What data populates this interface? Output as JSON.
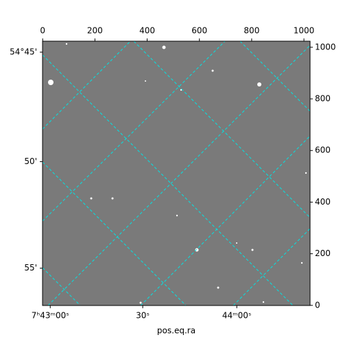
{
  "chart_data": {
    "type": "image",
    "xlabel": "pos.eq.ra",
    "xlim": [
      -0.5,
      1023.5
    ],
    "ylim": [
      -0.5,
      1023.5
    ],
    "xticks": [
      0,
      200,
      400,
      600,
      800,
      1000
    ],
    "yticks": [
      0,
      200,
      400,
      600,
      800,
      1000
    ],
    "ra_ticks": [
      {
        "value": 29,
        "label": "7ʰ43ᵐ00ˢ"
      },
      {
        "value": 383,
        "label": "30ˢ"
      },
      {
        "value": 743,
        "label": "44ᵐ00ˢ"
      }
    ],
    "dec_ticks": [
      {
        "value": 981,
        "label": "54°45'"
      },
      {
        "value": 557,
        "label": "50'"
      },
      {
        "value": 144,
        "label": "55'"
      }
    ],
    "grid": true,
    "grid_color": "#00e5e5",
    "background": "#7a7a7a"
  }
}
